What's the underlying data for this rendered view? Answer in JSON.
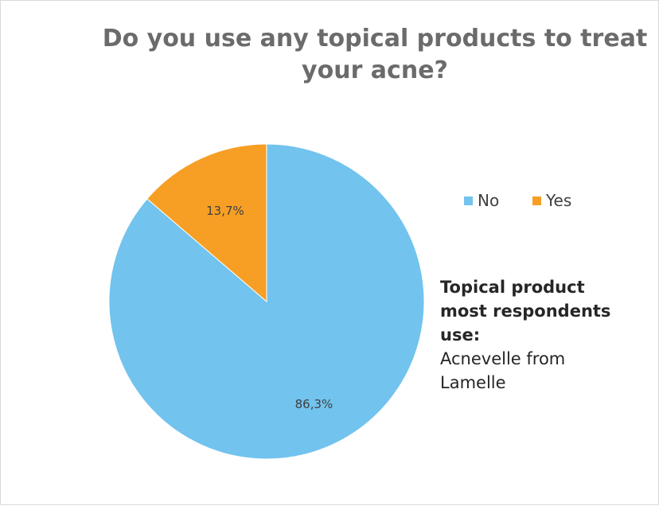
{
  "chart_data": {
    "type": "pie",
    "title_lines": [
      "Do you use any topical products to treat",
      "your acne?"
    ],
    "categories": [
      "No",
      "Yes"
    ],
    "values": [
      86.3,
      13.7
    ],
    "value_labels": [
      "86,3%",
      "13,7%"
    ],
    "colors": [
      "#72c3ee",
      "#f79f24"
    ],
    "legend_position": "right",
    "start_angle_deg": 0,
    "direction": "clockwise"
  },
  "annotation": {
    "heading_lines": [
      "Topical product",
      "most respondents",
      "use:"
    ],
    "body_lines": [
      "Acnevelle from",
      "Lamelle"
    ]
  }
}
